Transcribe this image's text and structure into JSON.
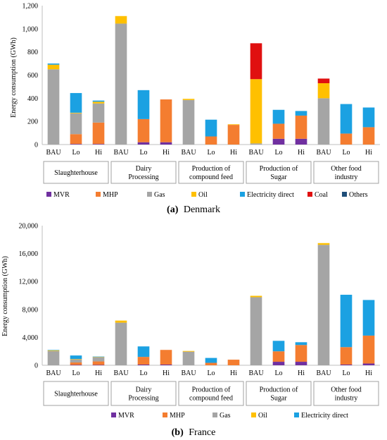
{
  "colors": {
    "MVR": "#7030a0",
    "MHP": "#f47d30",
    "Gas": "#a5a5a5",
    "Oil": "#ffc000",
    "Electricity direct": "#1ba1e2",
    "Coal": "#e01010",
    "Others": "#1f4e79"
  },
  "chart_data": [
    {
      "type": "bar",
      "stacked": true,
      "caption_letter": "(a)",
      "caption_text": "Denmark",
      "ylabel": "Energy consumption (GWh)",
      "ylim": [
        0,
        1200
      ],
      "yticks": [
        "0",
        "200",
        "400",
        "600",
        "800",
        "1,000",
        "1,200"
      ],
      "categories": [
        "BAU",
        "Lo",
        "Hi",
        "BAU",
        "Lo",
        "Hi",
        "BAU",
        "Lo",
        "Hi",
        "BAU",
        "Lo",
        "Hi",
        "BAU",
        "Lo",
        "Hi"
      ],
      "groups": [
        {
          "lines": [
            "Slaughterhouse"
          ]
        },
        {
          "lines": [
            "Dairy",
            "Processing"
          ]
        },
        {
          "lines": [
            "Production of",
            "compound feed"
          ]
        },
        {
          "lines": [
            "Production of",
            "Sugar"
          ]
        },
        {
          "lines": [
            "Other food",
            "industry"
          ]
        }
      ],
      "series": [
        {
          "name": "MVR",
          "values": [
            0,
            5,
            5,
            0,
            20,
            20,
            0,
            0,
            0,
            0,
            50,
            50,
            0,
            0,
            0
          ]
        },
        {
          "name": "MHP",
          "values": [
            0,
            85,
            185,
            0,
            200,
            370,
            0,
            70,
            170,
            0,
            130,
            200,
            0,
            95,
            150
          ]
        },
        {
          "name": "Gas",
          "values": [
            650,
            180,
            165,
            1045,
            0,
            0,
            385,
            0,
            0,
            10,
            0,
            0,
            400,
            0,
            0
          ]
        },
        {
          "name": "Oil",
          "values": [
            40,
            5,
            15,
            65,
            0,
            0,
            10,
            0,
            5,
            555,
            0,
            0,
            130,
            0,
            0
          ]
        },
        {
          "name": "Electricity direct",
          "values": [
            10,
            170,
            10,
            0,
            250,
            0,
            0,
            145,
            0,
            0,
            120,
            40,
            0,
            255,
            170
          ]
        },
        {
          "name": "Coal",
          "values": [
            0,
            0,
            0,
            0,
            0,
            0,
            0,
            0,
            0,
            310,
            0,
            0,
            40,
            0,
            0
          ]
        },
        {
          "name": "Others",
          "values": [
            0,
            0,
            0,
            0,
            0,
            0,
            0,
            0,
            0,
            0,
            0,
            0,
            0,
            0,
            0
          ]
        }
      ],
      "legend": [
        "MVR",
        "MHP",
        "Gas",
        "Oil",
        "Electricity direct",
        "Coal",
        "Others"
      ]
    },
    {
      "type": "bar",
      "stacked": true,
      "caption_letter": "(b)",
      "caption_text": "France",
      "ylabel": "Energy consumption (GWh)",
      "ylim": [
        0,
        20000
      ],
      "yticks": [
        "0",
        "4,000",
        "8,000",
        "12,000",
        "16,000",
        "20,000"
      ],
      "categories": [
        "BAU",
        "Lo",
        "Hi",
        "BAU",
        "Lo",
        "Hi",
        "BAU",
        "Lo",
        "Hi",
        "BAU",
        "Lo",
        "Hi",
        "BAU",
        "Lo",
        "Hi"
      ],
      "groups": [
        {
          "lines": [
            "Slaughterhouse"
          ]
        },
        {
          "lines": [
            "Dairy",
            "Processing"
          ]
        },
        {
          "lines": [
            "Production of",
            "compound feed"
          ]
        },
        {
          "lines": [
            "Production of",
            "Sugar"
          ]
        },
        {
          "lines": [
            "Other food",
            "industry"
          ]
        }
      ],
      "series": [
        {
          "name": "MVR",
          "values": [
            0,
            50,
            50,
            0,
            100,
            100,
            0,
            0,
            0,
            0,
            500,
            500,
            0,
            100,
            250
          ]
        },
        {
          "name": "MHP",
          "values": [
            0,
            350,
            500,
            0,
            1100,
            2100,
            0,
            350,
            800,
            0,
            1500,
            2400,
            0,
            2500,
            4000
          ]
        },
        {
          "name": "Gas",
          "values": [
            2050,
            450,
            600,
            6100,
            0,
            0,
            1950,
            0,
            0,
            9750,
            0,
            0,
            17250,
            0,
            0
          ]
        },
        {
          "name": "Oil",
          "values": [
            100,
            50,
            50,
            300,
            0,
            0,
            100,
            0,
            0,
            200,
            0,
            0,
            250,
            0,
            0
          ]
        },
        {
          "name": "Electricity direct",
          "values": [
            50,
            500,
            50,
            0,
            1500,
            0,
            0,
            700,
            0,
            0,
            1500,
            400,
            0,
            7500,
            5100
          ]
        }
      ],
      "legend": [
        "MVR",
        "MHP",
        "Gas",
        "Oil",
        "Electricity direct"
      ]
    }
  ]
}
